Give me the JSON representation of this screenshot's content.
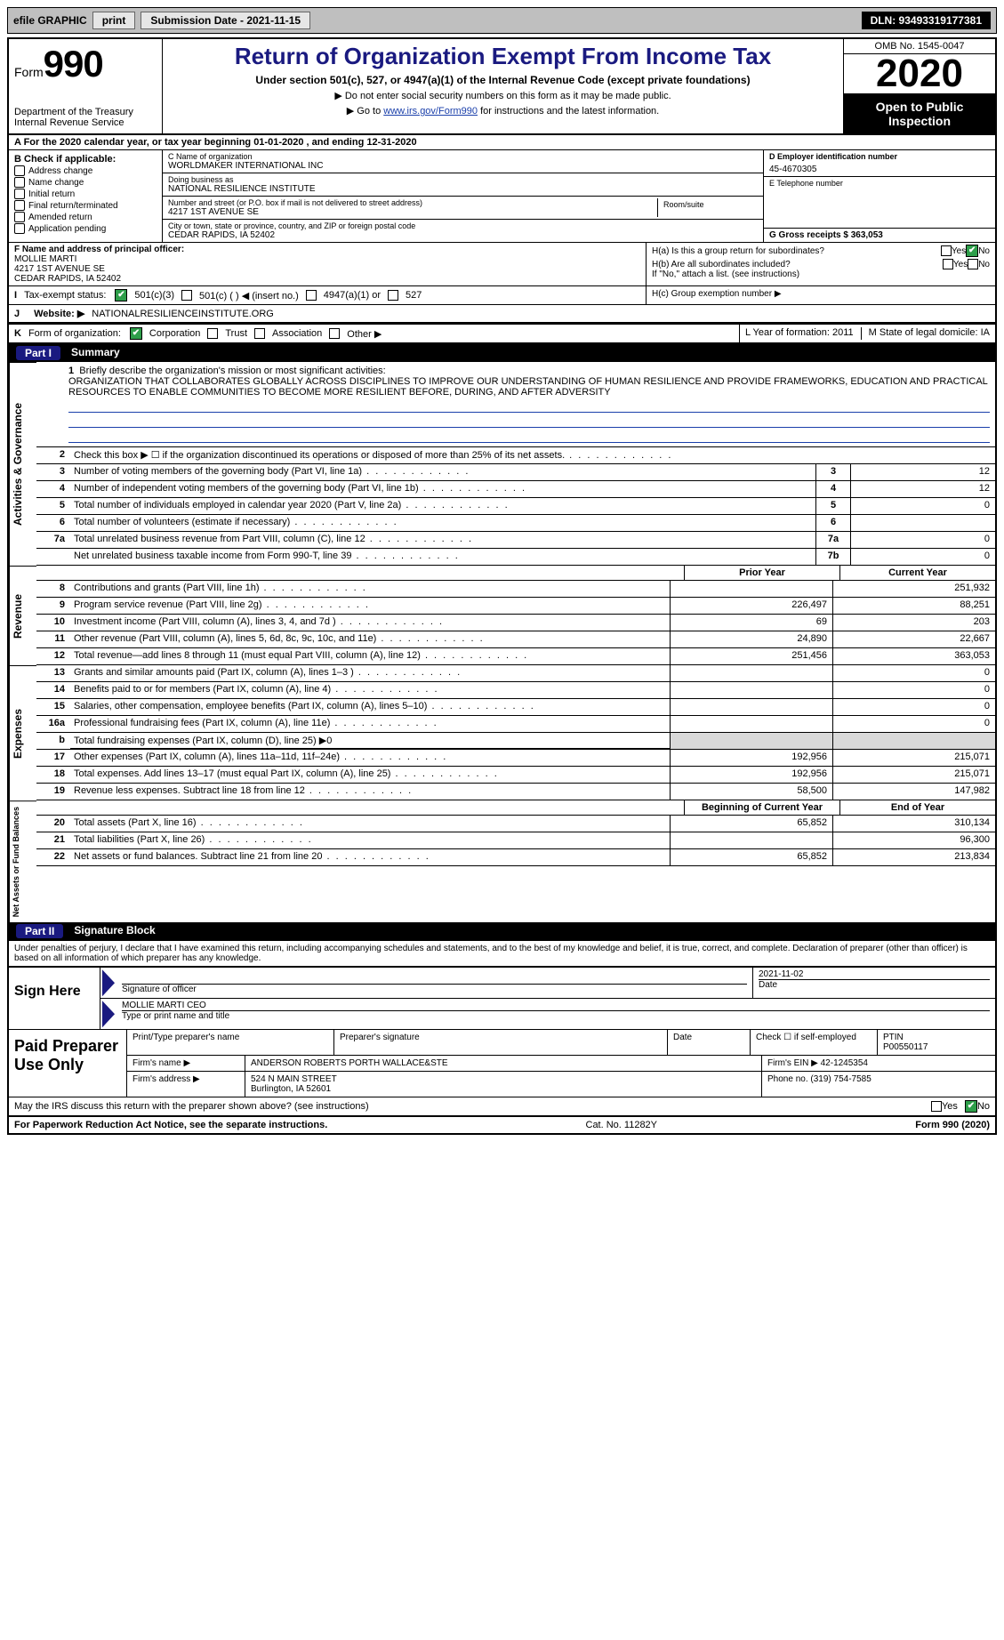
{
  "topbar": {
    "efile": "efile GRAPHIC",
    "print": "print",
    "sub_label": "Submission Date - 2021-11-15",
    "dln": "DLN: 93493319177381"
  },
  "header": {
    "form_prefix": "Form",
    "form_no": "990",
    "dept": "Department of the Treasury",
    "irs": "Internal Revenue Service",
    "title": "Return of Organization Exempt From Income Tax",
    "sub": "Under section 501(c), 527, or 4947(a)(1) of the Internal Revenue Code (except private foundations)",
    "note1": "▶ Do not enter social security numbers on this form as it may be made public.",
    "note2_pre": "▶ Go to ",
    "note2_link": "www.irs.gov/Form990",
    "note2_post": " for instructions and the latest information.",
    "omb": "OMB No. 1545-0047",
    "year": "2020",
    "open": "Open to Public Inspection"
  },
  "rowA": "A For the 2020 calendar year, or tax year beginning 01-01-2020    , and ending 12-31-2020",
  "sectionB": {
    "title": "B Check if applicable:",
    "items": [
      "Address change",
      "Name change",
      "Initial return",
      "Final return/terminated",
      "Amended return",
      "Application pending"
    ]
  },
  "sectionC": {
    "name_h": "C Name of organization",
    "name": "WORLDMAKER INTERNATIONAL INC",
    "dba_h": "Doing business as",
    "dba": "NATIONAL RESILIENCE INSTITUTE",
    "addr_h": "Number and street (or P.O. box if mail is not delivered to street address)",
    "addr": "4217 1ST AVENUE SE",
    "room_h": "Room/suite",
    "city_h": "City or town, state or province, country, and ZIP or foreign postal code",
    "city": "CEDAR RAPIDS, IA  52402"
  },
  "sectionD": {
    "h": "D Employer identification number",
    "v": "45-4670305"
  },
  "sectionE": {
    "h": "E Telephone number",
    "v": ""
  },
  "sectionG": {
    "h": "G Gross receipts $ 363,053"
  },
  "sectionF": {
    "h": "F  Name and address of principal officer:",
    "name": "MOLLIE MARTI",
    "addr1": "4217 1ST AVENUE SE",
    "addr2": "CEDAR RAPIDS, IA  52402"
  },
  "sectionH": {
    "ha": "H(a)  Is this a group return for subordinates?",
    "hb": "H(b)  Are all subordinates included?",
    "hb_note": "If \"No,\" attach a list. (see instructions)",
    "hc": "H(c)  Group exemption number ▶",
    "yes": "Yes",
    "no": "No"
  },
  "rowI": {
    "lbl": "I",
    "txt": "Tax-exempt status:",
    "o1": "501(c)(3)",
    "o2": "501(c) (   ) ◀ (insert no.)",
    "o3": "4947(a)(1) or",
    "o4": "527"
  },
  "rowJ": {
    "lbl": "J",
    "txt": "Website: ▶",
    "v": "NATIONALRESILIENCEINSTITUTE.ORG"
  },
  "rowK": {
    "lbl": "K",
    "txt": "Form of organization:",
    "o1": "Corporation",
    "o2": "Trust",
    "o3": "Association",
    "o4": "Other ▶"
  },
  "rowL": {
    "l": "L Year of formation: 2011",
    "m": "M State of legal domicile: IA"
  },
  "part1": {
    "tab": "Part I",
    "title": "Summary"
  },
  "mission": {
    "num": "1",
    "lead": "Briefly describe the organization's mission or most significant activities:",
    "text": "ORGANIZATION THAT COLLABORATES GLOBALLY ACROSS DISCIPLINES TO IMPROVE OUR UNDERSTANDING OF HUMAN RESILIENCE AND PROVIDE FRAMEWORKS, EDUCATION AND PRACTICAL RESOURCES TO ENABLE COMMUNITIES TO BECOME MORE RESILIENT BEFORE, DURING, AND AFTER ADVERSITY"
  },
  "side_labels": {
    "gov": "Activities & Governance",
    "rev": "Revenue",
    "exp": "Expenses",
    "net": "Net Assets or Fund Balances"
  },
  "lines_gov": [
    {
      "n": "2",
      "t": "Check this box ▶ ☐ if the organization discontinued its operations or disposed of more than 25% of its net assets."
    },
    {
      "n": "3",
      "t": "Number of voting members of the governing body (Part VI, line 1a)",
      "c": "3",
      "v": "12"
    },
    {
      "n": "4",
      "t": "Number of independent voting members of the governing body (Part VI, line 1b)",
      "c": "4",
      "v": "12"
    },
    {
      "n": "5",
      "t": "Total number of individuals employed in calendar year 2020 (Part V, line 2a)",
      "c": "5",
      "v": "0"
    },
    {
      "n": "6",
      "t": "Total number of volunteers (estimate if necessary)",
      "c": "6",
      "v": ""
    },
    {
      "n": "7a",
      "t": "Total unrelated business revenue from Part VIII, column (C), line 12",
      "c": "7a",
      "v": "0"
    },
    {
      "n": "",
      "t": "Net unrelated business taxable income from Form 990-T, line 39",
      "c": "7b",
      "v": "0"
    }
  ],
  "col_hdr": {
    "prior": "Prior Year",
    "curr": "Current Year"
  },
  "lines_rev": [
    {
      "n": "8",
      "t": "Contributions and grants (Part VIII, line 1h)",
      "p": "",
      "c": "251,932"
    },
    {
      "n": "9",
      "t": "Program service revenue (Part VIII, line 2g)",
      "p": "226,497",
      "c": "88,251"
    },
    {
      "n": "10",
      "t": "Investment income (Part VIII, column (A), lines 3, 4, and 7d )",
      "p": "69",
      "c": "203"
    },
    {
      "n": "11",
      "t": "Other revenue (Part VIII, column (A), lines 5, 6d, 8c, 9c, 10c, and 11e)",
      "p": "24,890",
      "c": "22,667"
    },
    {
      "n": "12",
      "t": "Total revenue—add lines 8 through 11 (must equal Part VIII, column (A), line 12)",
      "p": "251,456",
      "c": "363,053"
    }
  ],
  "lines_exp": [
    {
      "n": "13",
      "t": "Grants and similar amounts paid (Part IX, column (A), lines 1–3 )",
      "p": "",
      "c": "0"
    },
    {
      "n": "14",
      "t": "Benefits paid to or for members (Part IX, column (A), line 4)",
      "p": "",
      "c": "0"
    },
    {
      "n": "15",
      "t": "Salaries, other compensation, employee benefits (Part IX, column (A), lines 5–10)",
      "p": "",
      "c": "0"
    },
    {
      "n": "16a",
      "t": "Professional fundraising fees (Part IX, column (A), line 11e)",
      "p": "",
      "c": "0"
    },
    {
      "n": "b",
      "t": "Total fundraising expenses (Part IX, column (D), line 25) ▶0",
      "nb": true
    },
    {
      "n": "17",
      "t": "Other expenses (Part IX, column (A), lines 11a–11d, 11f–24e)",
      "p": "192,956",
      "c": "215,071"
    },
    {
      "n": "18",
      "t": "Total expenses. Add lines 13–17 (must equal Part IX, column (A), line 25)",
      "p": "192,956",
      "c": "215,071"
    },
    {
      "n": "19",
      "t": "Revenue less expenses. Subtract line 18 from line 12",
      "p": "58,500",
      "c": "147,982"
    }
  ],
  "col_hdr2": {
    "prior": "Beginning of Current Year",
    "curr": "End of Year"
  },
  "lines_net": [
    {
      "n": "20",
      "t": "Total assets (Part X, line 16)",
      "p": "65,852",
      "c": "310,134"
    },
    {
      "n": "21",
      "t": "Total liabilities (Part X, line 26)",
      "p": "",
      "c": "96,300"
    },
    {
      "n": "22",
      "t": "Net assets or fund balances. Subtract line 21 from line 20",
      "p": "65,852",
      "c": "213,834"
    }
  ],
  "part2": {
    "tab": "Part II",
    "title": "Signature Block"
  },
  "penalty": "Under penalties of perjury, I declare that I have examined this return, including accompanying schedules and statements, and to the best of my knowledge and belief, it is true, correct, and complete. Declaration of preparer (other than officer) is based on all information of which preparer has any knowledge.",
  "sign": {
    "here": "Sign Here",
    "sig_date": "2021-11-02",
    "sig_of": "Signature of officer",
    "date_l": "Date",
    "name": "MOLLIE MARTI CEO",
    "name_l": "Type or print name and title"
  },
  "paid": {
    "title": "Paid Preparer Use Only",
    "h1": "Print/Type preparer's name",
    "h2": "Preparer's signature",
    "h3": "Date",
    "h4_pre": "Check ☐ if self-employed",
    "h5": "PTIN",
    "ptin": "P00550117",
    "firm_l": "Firm's name    ▶",
    "firm": "ANDERSON ROBERTS PORTH WALLACE&STE",
    "ein_l": "Firm's EIN ▶",
    "ein": "42-1245354",
    "addr_l": "Firm's address ▶",
    "addr1": "524 N MAIN STREET",
    "addr2": "Burlington, IA  52601",
    "phone_l": "Phone no.",
    "phone": "(319) 754-7585"
  },
  "may_discuss": "May the IRS discuss this return with the preparer shown above? (see instructions)",
  "footer": {
    "pra": "For Paperwork Reduction Act Notice, see the separate instructions.",
    "cat": "Cat. No. 11282Y",
    "form": "Form 990 (2020)"
  }
}
